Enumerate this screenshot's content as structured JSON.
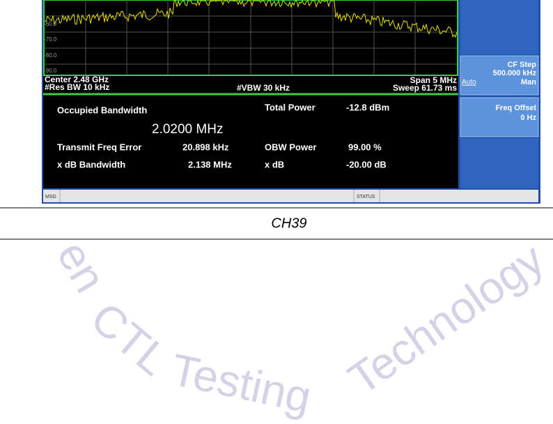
{
  "analyzer": {
    "y_axis_labels": [
      "-60.0",
      "-70.0",
      "-80.0",
      "-90.0"
    ],
    "center": "Center  2.48 GHz",
    "span": "Span 5 MHz",
    "res_bw": "#Res BW  10 kHz",
    "vbw": "#VBW  30 kHz",
    "sweep": "Sweep  61.73 ms",
    "measurement": {
      "title": "Occupied Bandwidth",
      "obw_value": "2.0200 MHz",
      "total_power_label": "Total Power",
      "total_power_value": "-12.8 dBm",
      "rows": [
        [
          "Transmit Freq Error",
          "20.898 kHz",
          "OBW Power",
          "99.00 %"
        ],
        [
          "x dB Bandwidth",
          "2.138 MHz",
          "x dB",
          "-20.00 dB"
        ]
      ]
    },
    "softkeys": [
      {
        "label": "CF Step",
        "value": "500.000 kHz",
        "left": "Auto",
        "right": "Man"
      },
      {
        "label": "Freq Offset",
        "value": "0 Hz"
      }
    ],
    "status_bar": {
      "msg": "MSG",
      "status": "STATUS"
    }
  },
  "caption": "CH39",
  "watermark": [
    "en",
    "CTL",
    "Testing",
    "Technology"
  ]
}
